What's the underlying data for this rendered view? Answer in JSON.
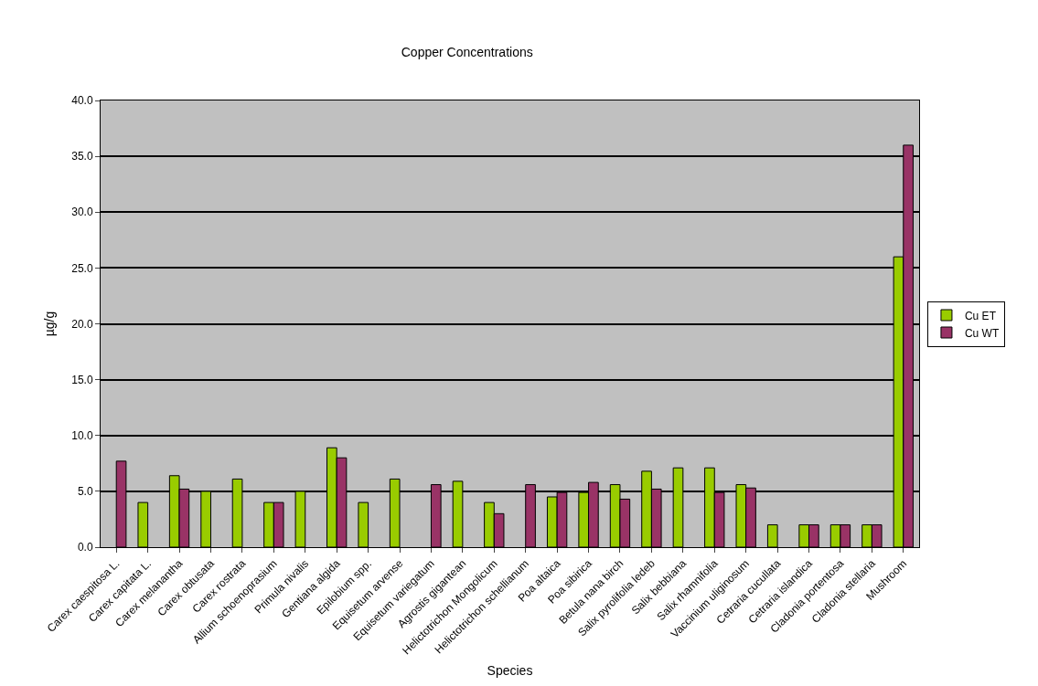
{
  "chart_data": {
    "type": "bar",
    "title": "Copper Concentrations",
    "xlabel": "Species",
    "ylabel": "µg/g",
    "categories": [
      "Carex caespitosa L.",
      "Carex capitata L.",
      "Carex melanantha",
      "Carex obtusata",
      "Carex rostrata",
      "Allium schoenoprasium",
      "Primula nivalis",
      "Gentiana algida",
      "Epilobium spp.",
      "Equisetum arvense",
      "Equisetum variegatum",
      "Agrostis gigantean",
      "Helictotrichon Mongolicum",
      "Helictotrichon schellianum",
      "Poa altaica",
      "Poa sibirica",
      "Betula nana birch",
      "Salix pyrolifolia ledeb",
      "Salix bebbiana",
      "Salix rhamnifolia",
      "Vaccinium uliginosum",
      "Cetraria cucullata",
      "Cetraria islandica",
      "Cladonia portentosa",
      "Cladonia stellaria",
      "Mushroom"
    ],
    "series": [
      {
        "name": "Cu ET",
        "color": "#99cc00",
        "values": [
          null,
          4.0,
          6.4,
          5.0,
          6.1,
          4.0,
          5.0,
          8.9,
          4.0,
          6.1,
          null,
          5.9,
          4.0,
          null,
          4.5,
          4.9,
          5.6,
          6.8,
          7.1,
          7.1,
          5.6,
          2.0,
          2.0,
          2.0,
          2.0,
          26.0
        ]
      },
      {
        "name": "Cu WT",
        "color": "#993366",
        "values": [
          7.7,
          null,
          5.2,
          null,
          null,
          4.0,
          null,
          8.0,
          null,
          null,
          5.6,
          null,
          3.0,
          5.6,
          4.9,
          5.8,
          4.3,
          5.2,
          null,
          4.9,
          5.3,
          null,
          2.0,
          2.0,
          2.0,
          36.0
        ]
      }
    ],
    "ylim": [
      0,
      40
    ],
    "yticks": [
      {
        "value": 0,
        "label": "0.0"
      },
      {
        "value": 5,
        "label": "5.0"
      },
      {
        "value": 10,
        "label": "10.0"
      },
      {
        "value": 15,
        "label": "15.0"
      },
      {
        "value": 20,
        "label": "20.0"
      },
      {
        "value": 25,
        "label": "25.0"
      },
      {
        "value": 30,
        "label": "30.0"
      },
      {
        "value": 35,
        "label": "35.0"
      },
      {
        "value": 40,
        "label": "40.0"
      }
    ],
    "grid": "y",
    "legend": "right"
  }
}
